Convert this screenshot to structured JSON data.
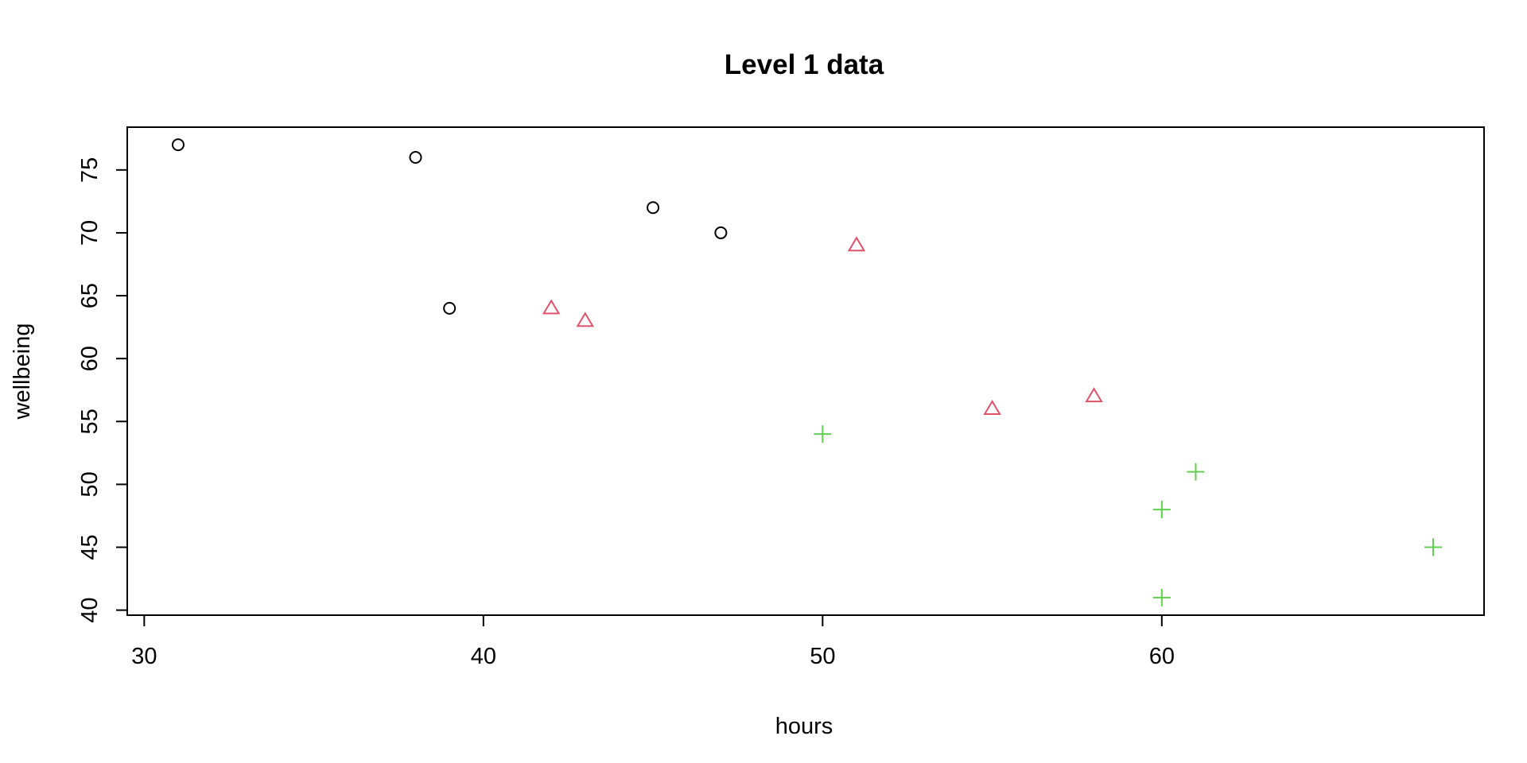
{
  "chart_data": {
    "type": "scatter",
    "title": "Level 1 data",
    "xlabel": "hours",
    "ylabel": "wellbeing",
    "xlim": [
      29.5,
      69.5
    ],
    "ylim": [
      39.6,
      78.4
    ],
    "x_ticks": [
      30,
      40,
      50,
      60
    ],
    "y_ticks": [
      40,
      45,
      50,
      55,
      60,
      65,
      70,
      75
    ],
    "grid": false,
    "series": [
      {
        "marker": "circle",
        "color": "#000000",
        "points": [
          [
            31,
            77
          ],
          [
            38,
            76
          ],
          [
            39,
            64
          ],
          [
            45,
            72
          ],
          [
            47,
            70
          ]
        ]
      },
      {
        "marker": "triangle",
        "color": "#DF536B",
        "points": [
          [
            42,
            64
          ],
          [
            43,
            63
          ],
          [
            51,
            69
          ],
          [
            55,
            56
          ],
          [
            58,
            57
          ]
        ]
      },
      {
        "marker": "plus",
        "color": "#61D04F",
        "points": [
          [
            50,
            54
          ],
          [
            60,
            48
          ],
          [
            60,
            41
          ],
          [
            61,
            51
          ],
          [
            68,
            45
          ]
        ]
      }
    ]
  }
}
